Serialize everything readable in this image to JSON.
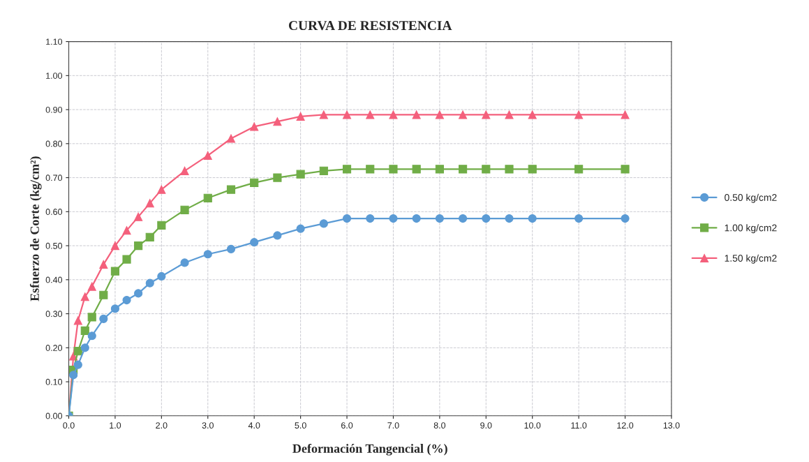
{
  "chart_data": {
    "type": "line",
    "title": "CURVA DE RESISTENCIA",
    "xlabel": "Deformación Tangencial (%)",
    "ylabel": "Esfuerzo de Corte (kg/cm²)",
    "x": [
      0,
      0.1,
      0.2,
      0.35,
      0.5,
      0.75,
      1.0,
      1.25,
      1.5,
      1.75,
      2.0,
      2.5,
      3.0,
      3.5,
      4.0,
      4.5,
      5.0,
      5.5,
      6.0,
      6.5,
      7.0,
      7.5,
      8.0,
      8.5,
      9.0,
      9.5,
      10.0,
      11.0,
      12.0
    ],
    "series": [
      {
        "name": "0.50 kg/cm2",
        "color": "#5b9bd5",
        "marker": "circle",
        "values": [
          0,
          0.12,
          0.15,
          0.2,
          0.235,
          0.285,
          0.315,
          0.34,
          0.36,
          0.39,
          0.41,
          0.45,
          0.475,
          0.49,
          0.51,
          0.53,
          0.55,
          0.565,
          0.58,
          0.58,
          0.58,
          0.58,
          0.58,
          0.58,
          0.58,
          0.58,
          0.58,
          0.58,
          0.58
        ]
      },
      {
        "name": "1.00 kg/cm2",
        "color": "#70ad47",
        "marker": "square",
        "values": [
          0,
          0.135,
          0.19,
          0.25,
          0.29,
          0.355,
          0.425,
          0.46,
          0.5,
          0.525,
          0.56,
          0.605,
          0.64,
          0.665,
          0.685,
          0.7,
          0.71,
          0.72,
          0.725,
          0.725,
          0.725,
          0.725,
          0.725,
          0.725,
          0.725,
          0.725,
          0.725,
          0.725,
          0.725
        ]
      },
      {
        "name": "1.50 kg/cm2",
        "color": "#f4607c",
        "marker": "triangle",
        "values": [
          0,
          0.175,
          0.28,
          0.35,
          0.38,
          0.445,
          0.5,
          0.545,
          0.585,
          0.625,
          0.665,
          0.72,
          0.765,
          0.815,
          0.85,
          0.865,
          0.88,
          0.885,
          0.885,
          0.885,
          0.885,
          0.885,
          0.885,
          0.885,
          0.885,
          0.885,
          0.885,
          0.885,
          0.885
        ]
      }
    ],
    "xlim": [
      0,
      13
    ],
    "xticks": [
      {
        "value": 0,
        "label": "0.0"
      },
      {
        "value": 1,
        "label": "1.0"
      },
      {
        "value": 2,
        "label": "2.0"
      },
      {
        "value": 3,
        "label": "3.0"
      },
      {
        "value": 4,
        "label": "4.0"
      },
      {
        "value": 5,
        "label": "5.0"
      },
      {
        "value": 6,
        "label": "6.0"
      },
      {
        "value": 7,
        "label": "7.0"
      },
      {
        "value": 8,
        "label": "8.0"
      },
      {
        "value": 9,
        "label": "9.0"
      },
      {
        "value": 10,
        "label": "10.0"
      },
      {
        "value": 11,
        "label": "11.0"
      },
      {
        "value": 12,
        "label": "12.0"
      },
      {
        "value": 13,
        "label": "13.0"
      }
    ],
    "ylim": [
      0,
      1.1
    ],
    "yticks": [
      {
        "value": 0,
        "label": "0.00"
      },
      {
        "value": 0.1,
        "label": "0.10"
      },
      {
        "value": 0.2,
        "label": "0.20"
      },
      {
        "value": 0.3,
        "label": "0.30"
      },
      {
        "value": 0.4,
        "label": "0.40"
      },
      {
        "value": 0.5,
        "label": "0.50"
      },
      {
        "value": 0.6,
        "label": "0.60"
      },
      {
        "value": 0.7,
        "label": "0.70"
      },
      {
        "value": 0.8,
        "label": "0.80"
      },
      {
        "value": 0.9,
        "label": "0.90"
      },
      {
        "value": 1.0,
        "label": "1.00"
      },
      {
        "value": 1.1,
        "label": "1.10"
      }
    ],
    "grid": true,
    "legend": "right",
    "line_style": "solid"
  }
}
